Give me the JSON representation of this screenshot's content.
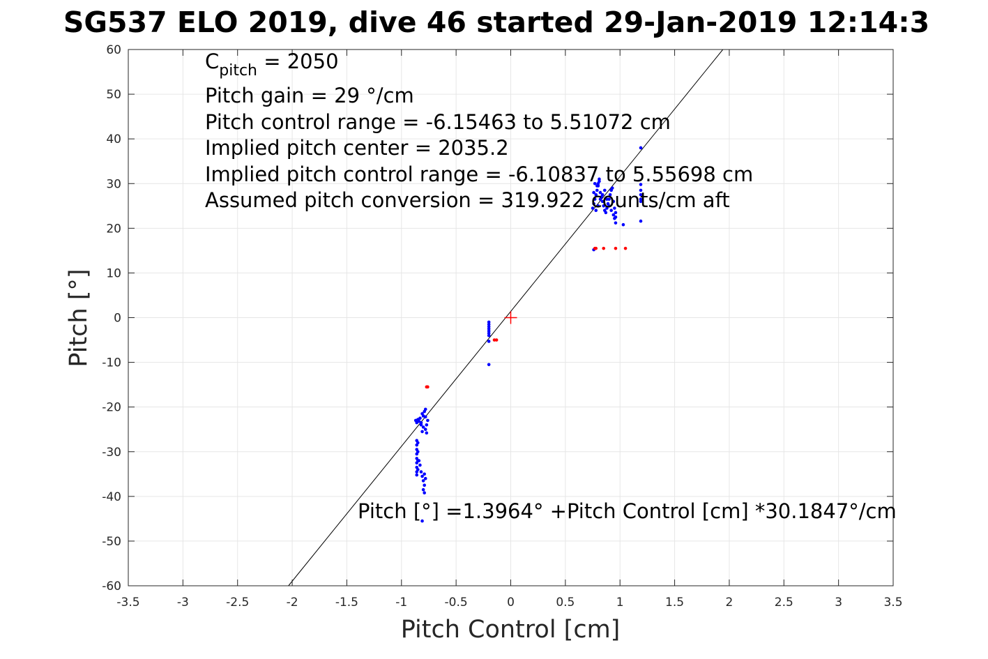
{
  "chart_data": {
    "type": "scatter",
    "title": "SG537 ELO 2019, dive 46 started 29-Jan-2019 12:14:3",
    "xlabel": "Pitch Control [cm]",
    "ylabel": "Pitch [°]",
    "xlim": [
      -3.5,
      3.5
    ],
    "ylim": [
      -60,
      60
    ],
    "grid": true,
    "x_ticks": [
      -3.5,
      -3,
      -2.5,
      -2,
      -1.5,
      -1,
      -0.5,
      0,
      0.5,
      1,
      1.5,
      2,
      2.5,
      3,
      3.5
    ],
    "x_tick_labels": [
      "-3.5",
      "-3",
      "-2.5",
      "-2",
      "-1.5",
      "-1",
      "-0.5",
      "0",
      "0.5",
      "1",
      "1.5",
      "2",
      "2.5",
      "3",
      "3.5"
    ],
    "y_ticks": [
      -60,
      -50,
      -40,
      -30,
      -20,
      -10,
      0,
      10,
      20,
      30,
      40,
      50,
      60
    ],
    "y_tick_labels": [
      "-60",
      "-50",
      "-40",
      "-30",
      "-20",
      "-10",
      "0",
      "10",
      "20",
      "30",
      "40",
      "50",
      "60"
    ],
    "fit_line": {
      "intercept": 1.3964,
      "slope": 30.1847,
      "color": "#000000"
    },
    "center_marker": {
      "x": 0,
      "y": 0,
      "color": "#ff0000"
    },
    "series": [
      {
        "color": "#0000ff",
        "points": [
          [
            -0.87,
            -23
          ],
          [
            -0.86,
            -23.5
          ],
          [
            -0.85,
            -22.8
          ],
          [
            -0.84,
            -23.2
          ],
          [
            -0.83,
            -22.5
          ],
          [
            -0.82,
            -24
          ],
          [
            -0.81,
            -21.5
          ],
          [
            -0.8,
            -22
          ],
          [
            -0.79,
            -21
          ],
          [
            -0.78,
            -20.5
          ],
          [
            -0.82,
            -23.5
          ],
          [
            -0.8,
            -24.5
          ],
          [
            -0.78,
            -25
          ],
          [
            -0.77,
            -24
          ],
          [
            -0.76,
            -23
          ],
          [
            -0.77,
            -25.8
          ],
          [
            -0.78,
            -22.2
          ],
          [
            -0.81,
            -25.5
          ],
          [
            -0.86,
            -27.5
          ],
          [
            -0.86,
            -28.5
          ],
          [
            -0.86,
            -29.5
          ],
          [
            -0.86,
            -30.5
          ],
          [
            -0.86,
            -31.5
          ],
          [
            -0.86,
            -32.5
          ],
          [
            -0.86,
            -33.5
          ],
          [
            -0.86,
            -34.5
          ],
          [
            -0.86,
            -35.2
          ],
          [
            -0.85,
            -28
          ],
          [
            -0.85,
            -30
          ],
          [
            -0.85,
            -32
          ],
          [
            -0.85,
            -34
          ],
          [
            -0.84,
            -32
          ],
          [
            -0.83,
            -33
          ],
          [
            -0.82,
            -34.5
          ],
          [
            -0.81,
            -35.5
          ],
          [
            -0.8,
            -36.5
          ],
          [
            -0.79,
            -37.5
          ],
          [
            -0.78,
            -36
          ],
          [
            -0.79,
            -35
          ],
          [
            -0.8,
            -38.5
          ],
          [
            -0.79,
            -39.2
          ],
          [
            -0.81,
            -45.5
          ],
          [
            -0.2,
            -1
          ],
          [
            -0.2,
            -1.5
          ],
          [
            -0.2,
            -2
          ],
          [
            -0.2,
            -2.5
          ],
          [
            -0.2,
            -3
          ],
          [
            -0.2,
            -3.5
          ],
          [
            -0.2,
            -4
          ],
          [
            -0.2,
            -5.3
          ],
          [
            -0.2,
            -10.5
          ],
          [
            0.76,
            15.2
          ],
          [
            0.75,
            24.5
          ],
          [
            0.76,
            25.5
          ],
          [
            0.77,
            26.5
          ],
          [
            0.78,
            27.5
          ],
          [
            0.79,
            28.5
          ],
          [
            0.8,
            29.5
          ],
          [
            0.81,
            30.5
          ],
          [
            0.82,
            28
          ],
          [
            0.83,
            27
          ],
          [
            0.84,
            26
          ],
          [
            0.85,
            25
          ],
          [
            0.86,
            24
          ],
          [
            0.87,
            23.5
          ],
          [
            0.88,
            24.5
          ],
          [
            0.89,
            25.5
          ],
          [
            0.9,
            26.5
          ],
          [
            0.91,
            27.5
          ],
          [
            0.92,
            28.5
          ],
          [
            0.93,
            29
          ],
          [
            0.94,
            26
          ],
          [
            0.78,
            24
          ],
          [
            0.8,
            25
          ],
          [
            0.82,
            26.5
          ],
          [
            0.84,
            27.5
          ],
          [
            0.86,
            28.5
          ],
          [
            0.88,
            26.5
          ],
          [
            0.9,
            25
          ],
          [
            0.92,
            24
          ],
          [
            0.94,
            23
          ],
          [
            0.95,
            24.5
          ],
          [
            0.8,
            30
          ],
          [
            0.81,
            31
          ],
          [
            0.79,
            29.5
          ],
          [
            0.77,
            30
          ],
          [
            0.76,
            28
          ],
          [
            0.96,
            21.2
          ],
          [
            0.96,
            22.5
          ],
          [
            0.96,
            23.5
          ],
          [
            0.95,
            22.2
          ],
          [
            1.03,
            20.8
          ],
          [
            1.19,
            38
          ],
          [
            1.19,
            29.8
          ],
          [
            1.19,
            28.5
          ],
          [
            1.19,
            27.5
          ],
          [
            1.19,
            26.5
          ],
          [
            1.19,
            26
          ],
          [
            1.19,
            21.6
          ]
        ]
      },
      {
        "color": "#ff0000",
        "points": [
          [
            -0.77,
            -15.5
          ],
          [
            -0.76,
            -15.5
          ],
          [
            -0.15,
            -5
          ],
          [
            -0.13,
            -5
          ],
          [
            0.77,
            15.5
          ],
          [
            0.78,
            15.5
          ],
          [
            0.85,
            15.5
          ],
          [
            0.96,
            15.5
          ],
          [
            1.05,
            15.5
          ]
        ]
      }
    ]
  },
  "annotations": {
    "c_pitch_symbol": "C",
    "c_pitch_subscript": "pitch",
    "c_pitch_value": " = 2050",
    "pitch_gain": "Pitch gain = 29 °/cm",
    "pitch_control_range": "Pitch control range = -6.15463 to 5.51072 cm",
    "implied_center": "Implied pitch center = 2035.2",
    "implied_range": "Implied pitch control range = -6.10837 to 5.55698 cm",
    "assumed_conversion": "Assumed pitch conversion = 319.922 counts/cm aft",
    "fit_equation": "Pitch [°] =1.3964° +Pitch Control [cm] *30.1847°/cm"
  }
}
